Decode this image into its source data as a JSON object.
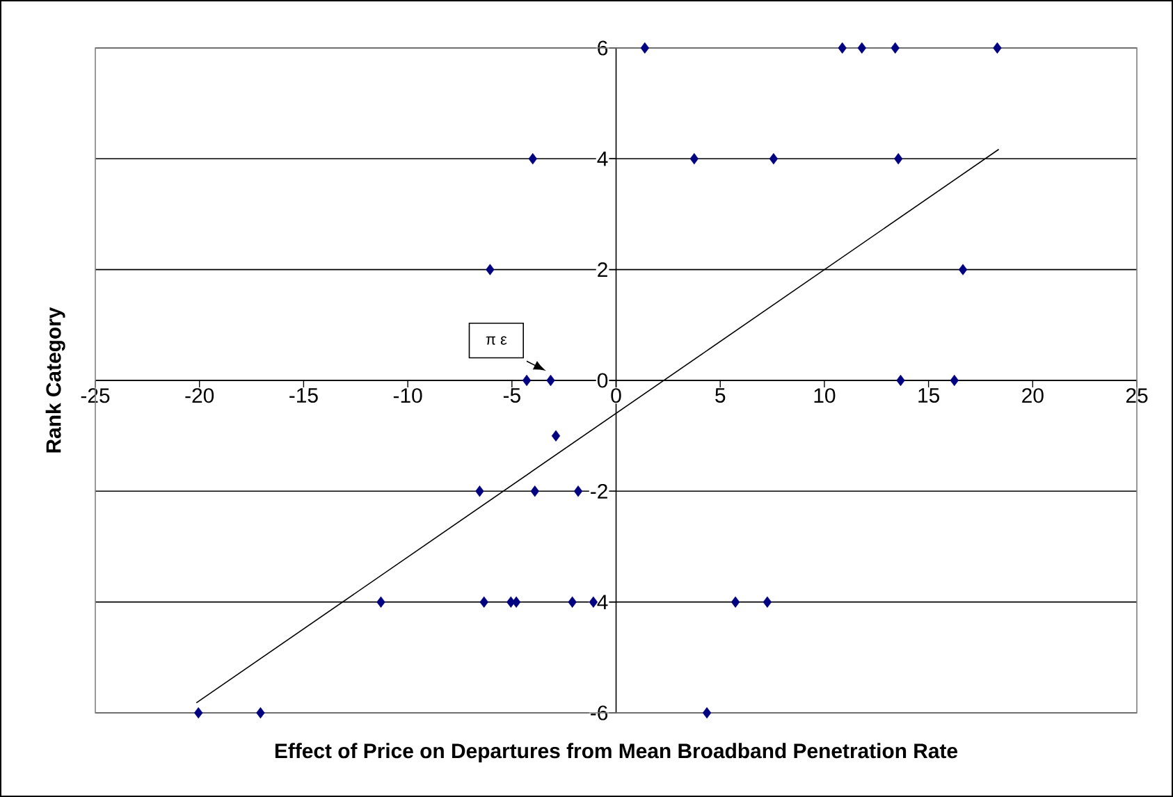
{
  "chart_data": {
    "type": "scatter",
    "xlabel": "Effect of Price on Departures from Mean Broadband Penetration Rate",
    "ylabel": "Rank Category",
    "xlim": [
      -25,
      25
    ],
    "ylim": [
      -6,
      6
    ],
    "xticks": [
      -25,
      -20,
      -15,
      -10,
      -5,
      0,
      5,
      10,
      15,
      20,
      25
    ],
    "yticks": [
      -6,
      -4,
      -2,
      0,
      2,
      4,
      6
    ],
    "grid": "y",
    "marker": "diamond",
    "annotations": [
      "π ε"
    ],
    "series": [
      {
        "color": "#000080",
        "x": [
          1.38,
          10.86,
          11.8,
          13.4,
          18.3,
          -4.0,
          3.75,
          7.56,
          13.55,
          -6.05,
          16.65,
          -4.29,
          -3.14,
          13.66,
          16.24,
          -2.89,
          -6.55,
          -3.9,
          -1.82,
          -11.29,
          -6.34,
          -5.05,
          -4.79,
          -2.1,
          -1.09,
          5.73,
          7.26,
          -20.05,
          -17.07,
          4.36
        ],
        "values": [
          6,
          6,
          6,
          6,
          6,
          4,
          4,
          4,
          4,
          2,
          2,
          0,
          0,
          0,
          0,
          -1,
          -2,
          -2,
          -2,
          -4,
          -4,
          -4,
          -4,
          -4,
          -4,
          -4,
          -4,
          -6,
          -6,
          -6
        ]
      },
      {
        "type": "line",
        "color": "#000000",
        "marker": "none",
        "x": [
          -20.15,
          18.37
        ],
        "values": [
          -5.82,
          4.17
        ]
      }
    ]
  }
}
